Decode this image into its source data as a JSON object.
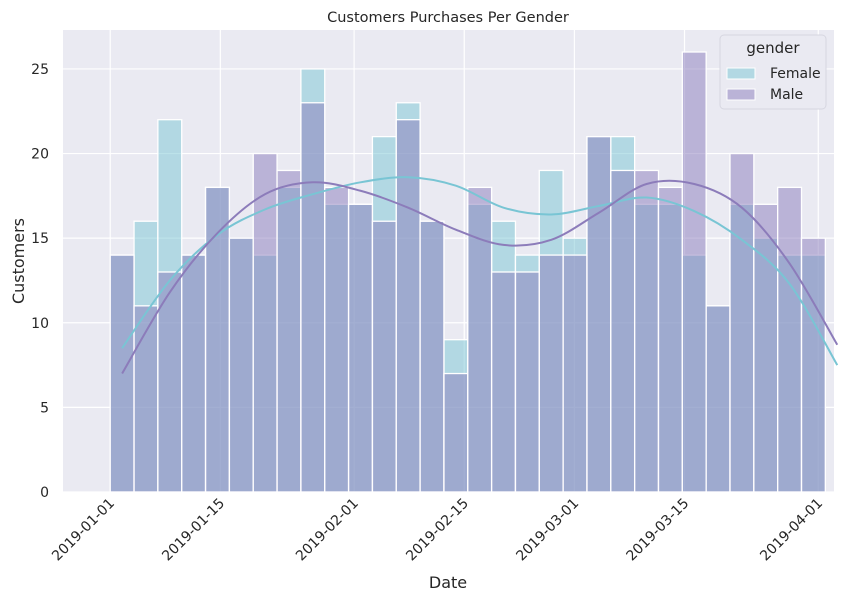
{
  "chart_data": {
    "type": "histogram",
    "title": "Customers Purchases Per Gender",
    "xlabel": "Date",
    "ylabel": "Customers",
    "x_tick_labels": [
      "2019-01-01",
      "2019-01-15",
      "2019-02-01",
      "2019-02-15",
      "2019-03-01",
      "2019-03-15",
      "2019-04-01"
    ],
    "y_ticks": [
      0,
      5,
      10,
      15,
      20,
      25
    ],
    "ylim": [
      0,
      27.3
    ],
    "xlim": [
      "2018-12-26",
      "2019-04-03"
    ],
    "bin_start": "2019-01-01",
    "bin_width_days": 3.03,
    "grid": true,
    "legend": {
      "title": "gender",
      "position": "top-right",
      "entries": [
        "Female",
        "Male"
      ]
    },
    "colors": {
      "Female": "#79c5d4",
      "Male": "#8a7cbb",
      "Female_kde": "#79c5d4",
      "Male_kde": "#8c7cba",
      "background": "#eaeaf2",
      "grid": "#ffffff"
    },
    "series": [
      {
        "name": "Female",
        "values": [
          14,
          16,
          22,
          14,
          18,
          15,
          14,
          18,
          25,
          17,
          17,
          21,
          23,
          16,
          9,
          17,
          16,
          14,
          19,
          15,
          21,
          21,
          17,
          17,
          14,
          11,
          17,
          15,
          14,
          14
        ]
      },
      {
        "name": "Male",
        "values": [
          14,
          11,
          13,
          14,
          18,
          15,
          20,
          19,
          23,
          18,
          17,
          16,
          22,
          16,
          7,
          18,
          13,
          13,
          14,
          14,
          21,
          19,
          19,
          18,
          26,
          11,
          20,
          17,
          18,
          15
        ]
      }
    ],
    "kde": [
      {
        "name": "Female",
        "x": [
          0,
          2,
          4,
          6,
          8,
          10,
          12,
          14,
          16,
          18,
          20,
          22,
          24,
          26,
          28,
          30
        ],
        "y": [
          8.5,
          12.5,
          15.2,
          16.7,
          17.6,
          18.3,
          18.6,
          18.1,
          16.8,
          16.4,
          16.9,
          17.4,
          16.6,
          14.9,
          12.3,
          7.5
        ]
      },
      {
        "name": "Male",
        "x": [
          0,
          2,
          4,
          6,
          8,
          10,
          12,
          14,
          16,
          18,
          20,
          22,
          24,
          26,
          28,
          30
        ],
        "y": [
          7.0,
          11.8,
          15.3,
          17.6,
          18.3,
          17.8,
          16.8,
          15.5,
          14.6,
          14.9,
          16.5,
          18.2,
          18.2,
          16.8,
          13.5,
          8.7
        ]
      }
    ]
  }
}
